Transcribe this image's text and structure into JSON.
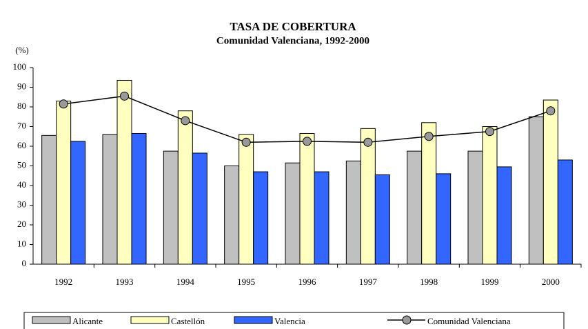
{
  "chart_data": {
    "type": "bar",
    "title": "TASA DE COBERTURA",
    "subtitle": "Comunidad Valenciana, 1992-2000",
    "y_label": "(%)",
    "categories": [
      "1992",
      "1993",
      "1994",
      "1995",
      "1996",
      "1997",
      "1998",
      "1999",
      "2000"
    ],
    "series": [
      {
        "name": "Alicante",
        "color": "#c0c0c0",
        "values": [
          65.5,
          66,
          57.5,
          50,
          51.5,
          52.5,
          57.5,
          57.5,
          75
        ]
      },
      {
        "name": "Castellón",
        "color": "#ffffc0",
        "values": [
          83,
          93.5,
          78,
          66,
          66.5,
          69,
          72,
          70,
          83.5
        ]
      },
      {
        "name": "Valencia",
        "color": "#3366ff",
        "values": [
          62.5,
          66.5,
          56.5,
          47,
          47,
          45.5,
          46,
          49.5,
          53
        ]
      },
      {
        "name": "Comunidad Valenciana",
        "type": "line",
        "color": "#000000",
        "marker_color": "#999999",
        "values": [
          81.5,
          85.5,
          73,
          62,
          62.5,
          62,
          65,
          67.5,
          78
        ]
      }
    ],
    "ylim": [
      0,
      100
    ],
    "yticks": [
      0,
      10,
      20,
      30,
      40,
      50,
      60,
      70,
      80,
      90,
      100
    ],
    "grid": false
  }
}
